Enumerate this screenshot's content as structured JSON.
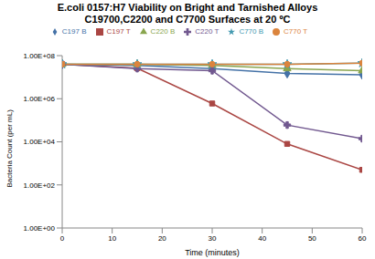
{
  "chart_data": {
    "type": "line",
    "title": "E.coli 0157:H7 Viability on Bright and Tarnished Alloys",
    "subtitle": "C19700,C2200 and C7700 Surfaces at 20 ºC",
    "x_label": "Time (minutes)",
    "y_label": "Bacteria Count (per mL)",
    "x": [
      0,
      15,
      30,
      45,
      60
    ],
    "xlim": [
      0,
      60
    ],
    "xticks": [
      0,
      10,
      20,
      30,
      40,
      50,
      60
    ],
    "ylim": [
      1,
      100000000
    ],
    "yticks": [
      {
        "value": 1,
        "label": "1.00E+00"
      },
      {
        "value": 100,
        "label": "1.00E+02"
      },
      {
        "value": 10000,
        "label": "1.00E+04"
      },
      {
        "value": 1000000,
        "label": "1.00E+06"
      },
      {
        "value": 100000000,
        "label": "1.00E+08"
      }
    ],
    "log": "y",
    "grid": false,
    "legend": "top",
    "series": [
      {
        "name": "C197 B",
        "color": "#4572A7",
        "marker": "diamond",
        "values": [
          40000000,
          35000000,
          25000000,
          15000000,
          13000000
        ]
      },
      {
        "name": "C197 T",
        "color": "#AA4643",
        "marker": "square",
        "values": [
          40000000,
          26000000,
          600000,
          8000,
          500
        ]
      },
      {
        "name": "C220 B",
        "color": "#89A54E",
        "marker": "triangle",
        "values": [
          40000000,
          40000000,
          35000000,
          25000000,
          20000000
        ]
      },
      {
        "name": "C220 T",
        "color": "#71588F",
        "marker": "x",
        "values": [
          40000000,
          25000000,
          20000000,
          60000,
          14000
        ]
      },
      {
        "name": "C770 B",
        "color": "#4198AF",
        "marker": "star",
        "values": [
          40000000,
          40000000,
          40000000,
          40000000,
          45000000
        ]
      },
      {
        "name": "C770 T",
        "color": "#DB843D",
        "marker": "circle",
        "values": [
          40000000,
          40000000,
          40000000,
          40000000,
          45000000
        ]
      }
    ]
  }
}
